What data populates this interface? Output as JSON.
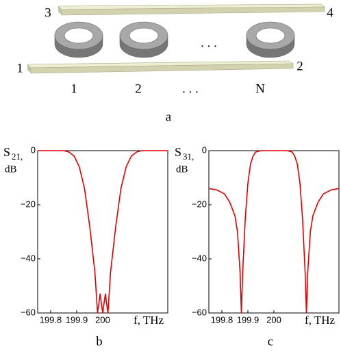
{
  "diagram": {
    "ports": [
      "3",
      "4",
      "1",
      "2"
    ],
    "ring_labels": [
      "1",
      "2",
      ". . .",
      "N"
    ],
    "ring_dots": ". . .",
    "panel_label": "a"
  },
  "chart_data": [
    {
      "type": "line",
      "panel_label": "b",
      "y_label_main": "S",
      "y_label_sub": "21,",
      "y_label_unit": "dB",
      "x_label": "f, THz",
      "color": "#e00000",
      "x": [
        199.75,
        199.85,
        199.87,
        199.89,
        199.91,
        199.93,
        199.95,
        199.97,
        199.98,
        199.99,
        200.0,
        200.01,
        200.02,
        200.03,
        200.05,
        200.07,
        200.09,
        200.11,
        200.13,
        200.15,
        200.25
      ],
      "values": [
        0,
        0,
        -0.5,
        -2,
        -6,
        -14,
        -28,
        -45,
        -60,
        -53,
        -60,
        -53,
        -60,
        -45,
        -28,
        -14,
        -6,
        -2,
        -0.5,
        0,
        0
      ],
      "xlim": [
        199.75,
        200.25
      ],
      "ylim": [
        -60,
        0
      ],
      "xticks": [
        199.8,
        199.9,
        200
      ],
      "yticks": [
        0,
        {
          "value": -20,
          "label": "−20"
        },
        {
          "value": -40,
          "label": "−40"
        },
        {
          "value": -60,
          "label": "−60"
        }
      ]
    },
    {
      "type": "line",
      "panel_label": "c",
      "y_label_main": "S",
      "y_label_sub": "31,",
      "y_label_unit": "dB",
      "x_label": "f, THz",
      "color": "#e00000",
      "x": [
        199.75,
        199.78,
        199.81,
        199.83,
        199.85,
        199.86,
        199.87,
        199.875,
        199.88,
        199.89,
        199.9,
        199.91,
        199.92,
        199.93,
        199.95,
        200.05,
        200.07,
        200.08,
        200.09,
        200.1,
        200.11,
        200.12,
        200.125,
        200.13,
        200.14,
        200.15,
        200.17,
        200.19,
        200.22,
        200.25
      ],
      "values": [
        -14,
        -14.5,
        -16,
        -19,
        -24,
        -30,
        -45,
        -60,
        -45,
        -25,
        -12,
        -5,
        -2,
        -0.5,
        0,
        0,
        -0.5,
        -2,
        -5,
        -12,
        -25,
        -45,
        -60,
        -45,
        -30,
        -24,
        -19,
        -16,
        -14.5,
        -14
      ],
      "xlim": [
        199.75,
        200.25
      ],
      "ylim": [
        -60,
        0
      ],
      "xticks": [
        199.8,
        199.9,
        200
      ],
      "yticks": [
        0,
        {
          "value": -20,
          "label": "−20"
        },
        {
          "value": -40,
          "label": "−40"
        },
        {
          "value": -60,
          "label": "−60"
        }
      ]
    }
  ]
}
